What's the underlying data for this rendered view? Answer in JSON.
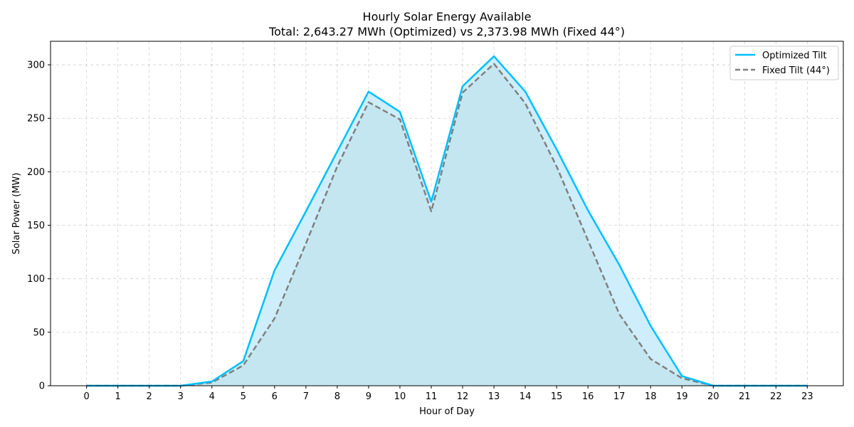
{
  "chart_data": {
    "type": "line",
    "title": "Hourly Solar Energy Available",
    "subtitle": "Total: 2,643.27 MWh (Optimized) vs 2,373.98 MWh (Fixed 44°)",
    "xlabel": "Hour of Day",
    "ylabel": "Solar Power (MW)",
    "x": [
      0,
      1,
      2,
      3,
      4,
      5,
      6,
      7,
      8,
      9,
      10,
      11,
      12,
      13,
      14,
      15,
      16,
      17,
      18,
      19,
      20,
      21,
      22,
      23
    ],
    "xticks": [
      "0",
      "1",
      "2",
      "3",
      "4",
      "5",
      "6",
      "7",
      "8",
      "9",
      "10",
      "11",
      "12",
      "13",
      "14",
      "15",
      "16",
      "17",
      "18",
      "19",
      "20",
      "21",
      "22",
      "23"
    ],
    "ylim": [
      0,
      322
    ],
    "yticks": [
      0,
      50,
      100,
      150,
      200,
      250,
      300
    ],
    "grid": true,
    "legend_position": "top-right",
    "series": [
      {
        "name": "Optimized Tilt",
        "color": "#00bfff",
        "style": "solid",
        "values": [
          0,
          0,
          0,
          0,
          4,
          23,
          108,
          163,
          219,
          275,
          256,
          172,
          280,
          308,
          275,
          221,
          164,
          113,
          56,
          9,
          0,
          0,
          0,
          0
        ]
      },
      {
        "name": "Fixed Tilt (44°)",
        "color": "#808080",
        "style": "dashed",
        "values": [
          0,
          0,
          0,
          0,
          3,
          19,
          63,
          133,
          205,
          265,
          249,
          163,
          274,
          301,
          264,
          205,
          136,
          67,
          25,
          7,
          0,
          0,
          0,
          0
        ]
      }
    ],
    "fill_colors": {
      "between": "#cdeefa",
      "under_fixed": "#c4e6f1"
    }
  }
}
